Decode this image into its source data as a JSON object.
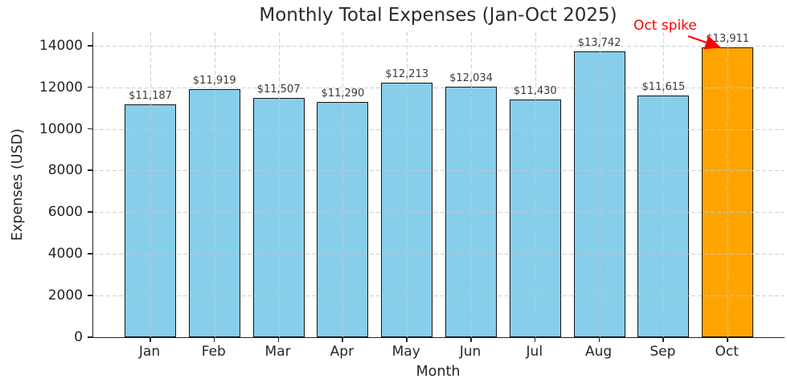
{
  "chart_data": {
    "type": "bar",
    "title": "Monthly Total Expenses (Jan-Oct 2025)",
    "xlabel": "Month",
    "ylabel": "Expenses (USD)",
    "categories": [
      "Jan",
      "Feb",
      "Mar",
      "Apr",
      "May",
      "Jun",
      "Jul",
      "Aug",
      "Sep",
      "Oct"
    ],
    "values": [
      11187,
      11919,
      11507,
      11290,
      12213,
      12034,
      11430,
      13742,
      11615,
      13911
    ],
    "bar_labels": [
      "$11,187",
      "$11,919",
      "$11,507",
      "$11,290",
      "$12,213",
      "$12,034",
      "$11,430",
      "$13,742",
      "$11,615",
      "$13,911"
    ],
    "yticks": [
      0,
      2000,
      4000,
      6000,
      8000,
      10000,
      12000,
      14000
    ],
    "ylim": [
      0,
      14650
    ],
    "bar_color": "#87CEEB",
    "highlight_color": "#FFA500",
    "highlight_index": 9,
    "edge_color": "#141414",
    "grid": {
      "show": true,
      "style": "dashed",
      "axis": "both",
      "color": "#c8c8c8"
    },
    "legend": {
      "show": false
    },
    "annotation": {
      "text": "Oct spike",
      "color": "#ff0000",
      "target_category": "Oct"
    }
  }
}
